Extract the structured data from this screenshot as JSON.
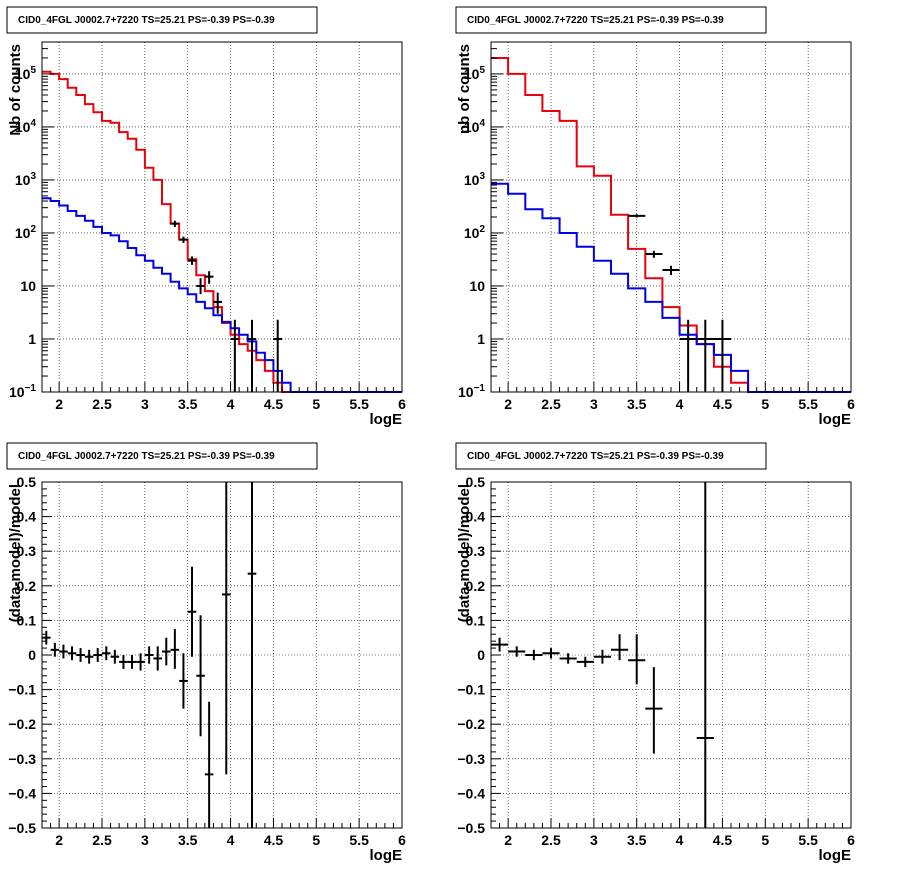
{
  "chart_data": [
    {
      "type": "line",
      "title": "CID0_4FGL J0002.7+7220 TS=25.21 PS=-0.39 PS=-0.39",
      "xlabel": "logE",
      "ylabel": "Nb of counts",
      "xlim": [
        1.8,
        6.0
      ],
      "ylim": [
        0.1,
        400000
      ],
      "yscale": "log",
      "grid": true,
      "x_ticks": [
        2,
        2.5,
        3,
        3.5,
        4,
        4.5,
        5,
        5.5,
        6
      ],
      "x_tick_labels": [
        "2",
        "2.5",
        "3",
        "3.5",
        "4",
        "4.5",
        "5",
        "5.5",
        "6"
      ],
      "y_ticks": [
        0.1,
        1,
        10,
        100,
        1000,
        10000,
        100000
      ],
      "y_tick_labels": [
        "10^-1",
        "1",
        "10",
        "10^2",
        "10^3",
        "10^4",
        "10^5"
      ],
      "series": [
        {
          "name": "",
          "style": "step",
          "color": "#e8000b",
          "bin_edges": [
            1.8,
            1.9,
            2.0,
            2.1,
            2.2,
            2.3,
            2.4,
            2.5,
            2.6,
            2.7,
            2.8,
            2.9,
            3.0,
            3.1,
            3.2,
            3.3,
            3.4,
            3.5,
            3.6,
            3.7,
            3.8,
            3.9,
            4.0,
            4.1,
            4.2,
            4.3,
            4.4,
            4.5,
            4.6,
            4.7,
            4.8,
            4.9,
            5.0,
            5.1,
            5.2,
            5.3,
            5.4,
            5.5,
            5.6,
            5.7,
            5.8,
            5.9,
            6.0
          ],
          "values": [
            110000,
            100000,
            80000,
            55000,
            40000,
            27000,
            19000,
            13000,
            12000,
            8000,
            6000,
            3700,
            1700,
            1000,
            350,
            150,
            75,
            32,
            16,
            8,
            4,
            2,
            1.2,
            0.8,
            0.6,
            0.4,
            0.25,
            0.15,
            0.1,
            0.1,
            0.1,
            0.1,
            0.1,
            0.1,
            0.1,
            0.1,
            0.1,
            0.1,
            0.1,
            0.1,
            0.1,
            0.1
          ]
        },
        {
          "name": "",
          "style": "step",
          "color": "#0000e6",
          "bin_edges": [
            1.8,
            1.9,
            2.0,
            2.1,
            2.2,
            2.3,
            2.4,
            2.5,
            2.6,
            2.7,
            2.8,
            2.9,
            3.0,
            3.1,
            3.2,
            3.3,
            3.4,
            3.5,
            3.6,
            3.7,
            3.8,
            3.9,
            4.0,
            4.1,
            4.2,
            4.3,
            4.4,
            4.5,
            4.6,
            4.7,
            4.8,
            4.9,
            5.0,
            5.1,
            5.2,
            5.3,
            5.4,
            5.5,
            5.6,
            5.7,
            5.8,
            5.9,
            6.0
          ],
          "values": [
            450,
            400,
            330,
            260,
            210,
            170,
            130,
            100,
            90,
            70,
            52,
            38,
            30,
            22,
            17,
            12,
            9,
            7,
            5,
            3.8,
            2.8,
            2.1,
            1.6,
            1.2,
            0.9,
            0.55,
            0.4,
            0.25,
            0.15,
            0.1,
            0.1,
            0.1,
            0.1,
            0.1,
            0.1,
            0.1,
            0.1,
            0.1,
            0.1,
            0.1,
            0.1,
            0.1
          ]
        },
        {
          "name": "",
          "style": "errorbar",
          "color": "#000000",
          "points": [
            {
              "x": 3.35,
              "y": 150,
              "xerr": 0.05,
              "ylo": 130,
              "yhi": 170
            },
            {
              "x": 3.45,
              "y": 75,
              "xerr": 0.05,
              "ylo": 65,
              "yhi": 85
            },
            {
              "x": 3.55,
              "y": 30,
              "xerr": 0.05,
              "ylo": 25,
              "yhi": 36
            },
            {
              "x": 3.65,
              "y": 10,
              "xerr": 0.05,
              "ylo": 7,
              "yhi": 14
            },
            {
              "x": 3.75,
              "y": 15,
              "xerr": 0.05,
              "ylo": 11,
              "yhi": 19
            },
            {
              "x": 3.85,
              "y": 5,
              "xerr": 0.05,
              "ylo": 3,
              "yhi": 7.5
            },
            {
              "x": 4.05,
              "y": 1,
              "xerr": 0.05,
              "ylo": 0.1,
              "yhi": 2.3
            },
            {
              "x": 4.25,
              "y": 1,
              "xerr": 0.05,
              "ylo": 0.1,
              "yhi": 2.3
            },
            {
              "x": 4.55,
              "y": 1,
              "xerr": 0.05,
              "ylo": 0.1,
              "yhi": 2.3
            }
          ]
        }
      ]
    },
    {
      "type": "line",
      "title": "CID0_4FGL J0002.7+7220 TS=25.21 PS=-0.39 PS=-0.39",
      "xlabel": "logE",
      "ylabel": "nb of counts",
      "xlim": [
        1.8,
        6.0
      ],
      "ylim": [
        0.1,
        400000
      ],
      "yscale": "log",
      "grid": true,
      "x_ticks": [
        2,
        2.5,
        3,
        3.5,
        4,
        4.5,
        5,
        5.5,
        6
      ],
      "x_tick_labels": [
        "2",
        "2.5",
        "3",
        "3.5",
        "4",
        "4.5",
        "5",
        "5.5",
        "6"
      ],
      "y_ticks": [
        0.1,
        1,
        10,
        100,
        1000,
        10000,
        100000
      ],
      "y_tick_labels": [
        "10^-1",
        "1",
        "10",
        "10^2",
        "10^3",
        "10^4",
        "10^5"
      ],
      "series": [
        {
          "name": "",
          "style": "step",
          "color": "#e8000b",
          "bin_edges": [
            1.8,
            2.0,
            2.2,
            2.4,
            2.6,
            2.8,
            3.0,
            3.2,
            3.4,
            3.6,
            3.8,
            4.0,
            4.2,
            4.4,
            4.6,
            4.8,
            5.0,
            5.2,
            5.4,
            5.6,
            5.8,
            6.0
          ],
          "values": [
            200000,
            100000,
            40000,
            20000,
            13000,
            1800,
            1200,
            220,
            50,
            14,
            4,
            1.8,
            0.8,
            0.3,
            0.15,
            0.1,
            0.1,
            0.1,
            0.1,
            0.1,
            0.1
          ]
        },
        {
          "name": "",
          "style": "step",
          "color": "#0000e6",
          "bin_edges": [
            1.8,
            2.0,
            2.2,
            2.4,
            2.6,
            2.8,
            3.0,
            3.2,
            3.4,
            3.6,
            3.8,
            4.0,
            4.2,
            4.4,
            4.6,
            4.8,
            5.0,
            5.2,
            5.4,
            5.6,
            5.8,
            6.0
          ],
          "values": [
            850,
            550,
            280,
            190,
            100,
            55,
            30,
            17,
            9,
            5,
            2.5,
            1.2,
            0.8,
            0.5,
            0.25,
            0.1,
            0.1,
            0.1,
            0.1,
            0.1,
            0.1
          ]
        },
        {
          "name": "",
          "style": "errorbar",
          "color": "#000000",
          "points": [
            {
              "x": 3.5,
              "y": 210,
              "xerr": 0.1,
              "ylo": 195,
              "yhi": 225
            },
            {
              "x": 3.7,
              "y": 40,
              "xerr": 0.1,
              "ylo": 34,
              "yhi": 46
            },
            {
              "x": 3.9,
              "y": 20,
              "xerr": 0.1,
              "ylo": 16,
              "yhi": 24
            },
            {
              "x": 4.1,
              "y": 1,
              "xerr": 0.1,
              "ylo": 0.1,
              "yhi": 2.3
            },
            {
              "x": 4.3,
              "y": 1,
              "xerr": 0.1,
              "ylo": 0.1,
              "yhi": 2.3
            },
            {
              "x": 4.5,
              "y": 1,
              "xerr": 0.1,
              "ylo": 0.1,
              "yhi": 2.3
            }
          ]
        }
      ]
    },
    {
      "type": "scatter",
      "title": "CID0_4FGL J0002.7+7220 TS=25.21 PS=-0.39 PS=-0.39",
      "xlabel": "logE",
      "ylabel": "(data-model)/model",
      "xlim": [
        1.8,
        6.0
      ],
      "ylim": [
        -0.5,
        0.5
      ],
      "grid": true,
      "x_ticks": [
        2,
        2.5,
        3,
        3.5,
        4,
        4.5,
        5,
        5.5,
        6
      ],
      "x_tick_labels": [
        "2",
        "2.5",
        "3",
        "3.5",
        "4",
        "4.5",
        "5",
        "5.5",
        "6"
      ],
      "y_ticks": [
        -0.5,
        -0.4,
        -0.3,
        -0.2,
        -0.1,
        0,
        0.1,
        0.2,
        0.3,
        0.4,
        0.5
      ],
      "y_tick_labels": [
        "−0.5",
        "−0.4",
        "−0.3",
        "−0.2",
        "−0.1",
        "0",
        "0.1",
        "0.2",
        "0.3",
        "0.4",
        "0.5"
      ],
      "series": [
        {
          "name": "",
          "style": "errorbar",
          "color": "#000000",
          "points": [
            {
              "x": 1.85,
              "y": 0.05,
              "xerr": 0.05,
              "ylo": 0.03,
              "yhi": 0.07
            },
            {
              "x": 1.95,
              "y": 0.015,
              "xerr": 0.05,
              "ylo": -0.005,
              "yhi": 0.035
            },
            {
              "x": 2.05,
              "y": 0.01,
              "xerr": 0.05,
              "ylo": -0.01,
              "yhi": 0.03
            },
            {
              "x": 2.15,
              "y": 0.005,
              "xerr": 0.05,
              "ylo": -0.015,
              "yhi": 0.025
            },
            {
              "x": 2.25,
              "y": 0.0,
              "xerr": 0.05,
              "ylo": -0.02,
              "yhi": 0.02
            },
            {
              "x": 2.35,
              "y": -0.005,
              "xerr": 0.05,
              "ylo": -0.025,
              "yhi": 0.015
            },
            {
              "x": 2.45,
              "y": 0.0,
              "xerr": 0.05,
              "ylo": -0.02,
              "yhi": 0.02
            },
            {
              "x": 2.55,
              "y": 0.005,
              "xerr": 0.05,
              "ylo": -0.015,
              "yhi": 0.025
            },
            {
              "x": 2.65,
              "y": -0.005,
              "xerr": 0.05,
              "ylo": -0.025,
              "yhi": 0.015
            },
            {
              "x": 2.75,
              "y": -0.02,
              "xerr": 0.05,
              "ylo": -0.04,
              "yhi": 0.0
            },
            {
              "x": 2.85,
              "y": -0.02,
              "xerr": 0.05,
              "ylo": -0.04,
              "yhi": 0.0
            },
            {
              "x": 2.95,
              "y": -0.02,
              "xerr": 0.05,
              "ylo": -0.045,
              "yhi": 0.005
            },
            {
              "x": 3.05,
              "y": 0.0,
              "xerr": 0.05,
              "ylo": -0.025,
              "yhi": 0.025
            },
            {
              "x": 3.15,
              "y": -0.01,
              "xerr": 0.05,
              "ylo": -0.045,
              "yhi": 0.025
            },
            {
              "x": 3.25,
              "y": 0.01,
              "xerr": 0.05,
              "ylo": -0.03,
              "yhi": 0.05
            },
            {
              "x": 3.35,
              "y": 0.015,
              "xerr": 0.05,
              "ylo": -0.04,
              "yhi": 0.075
            },
            {
              "x": 3.45,
              "y": -0.075,
              "xerr": 0.05,
              "ylo": -0.155,
              "yhi": 0.005
            },
            {
              "x": 3.55,
              "y": 0.125,
              "xerr": 0.05,
              "ylo": -0.005,
              "yhi": 0.255
            },
            {
              "x": 3.65,
              "y": -0.06,
              "xerr": 0.05,
              "ylo": -0.235,
              "yhi": 0.115
            },
            {
              "x": 3.75,
              "y": -0.345,
              "xerr": 0.05,
              "ylo": -0.5,
              "yhi": -0.135
            },
            {
              "x": 3.95,
              "y": 0.175,
              "xerr": 0.05,
              "ylo": -0.345,
              "yhi": 0.5
            },
            {
              "x": 4.25,
              "y": 0.235,
              "xerr": 0.05,
              "ylo": -0.5,
              "yhi": 0.5
            }
          ]
        }
      ]
    },
    {
      "type": "scatter",
      "title": "CID0_4FGL J0002.7+7220 TS=25.21 PS=-0.39 PS=-0.39",
      "xlabel": "logE",
      "ylabel": "(data-model)/model",
      "xlim": [
        1.8,
        6.0
      ],
      "ylim": [
        -0.5,
        0.5
      ],
      "grid": true,
      "x_ticks": [
        2,
        2.5,
        3,
        3.5,
        4,
        4.5,
        5,
        5.5,
        6
      ],
      "x_tick_labels": [
        "2",
        "2.5",
        "3",
        "3.5",
        "4",
        "4.5",
        "5",
        "5.5",
        "6"
      ],
      "y_ticks": [
        -0.5,
        -0.4,
        -0.3,
        -0.2,
        -0.1,
        0,
        0.1,
        0.2,
        0.3,
        0.4,
        0.5
      ],
      "y_tick_labels": [
        "−0.5",
        "−0.4",
        "−0.3",
        "−0.2",
        "−0.1",
        "0",
        "0.1",
        "0.2",
        "0.3",
        "0.4",
        "0.5"
      ],
      "series": [
        {
          "name": "",
          "style": "errorbar",
          "color": "#000000",
          "points": [
            {
              "x": 1.9,
              "y": 0.03,
              "xerr": 0.1,
              "ylo": 0.01,
              "yhi": 0.05
            },
            {
              "x": 2.1,
              "y": 0.01,
              "xerr": 0.1,
              "ylo": -0.005,
              "yhi": 0.025
            },
            {
              "x": 2.3,
              "y": 0.0,
              "xerr": 0.1,
              "ylo": -0.015,
              "yhi": 0.015
            },
            {
              "x": 2.5,
              "y": 0.005,
              "xerr": 0.1,
              "ylo": -0.01,
              "yhi": 0.02
            },
            {
              "x": 2.7,
              "y": -0.01,
              "xerr": 0.1,
              "ylo": -0.025,
              "yhi": 0.005
            },
            {
              "x": 2.9,
              "y": -0.02,
              "xerr": 0.1,
              "ylo": -0.035,
              "yhi": -0.005
            },
            {
              "x": 3.1,
              "y": -0.005,
              "xerr": 0.1,
              "ylo": -0.025,
              "yhi": 0.015
            },
            {
              "x": 3.3,
              "y": 0.015,
              "xerr": 0.1,
              "ylo": -0.015,
              "yhi": 0.06
            },
            {
              "x": 3.5,
              "y": -0.015,
              "xerr": 0.1,
              "ylo": -0.085,
              "yhi": 0.06
            },
            {
              "x": 3.7,
              "y": -0.155,
              "xerr": 0.1,
              "ylo": -0.285,
              "yhi": -0.035
            },
            {
              "x": 4.3,
              "y": -0.24,
              "xerr": 0.1,
              "ylo": -0.5,
              "yhi": 0.5
            }
          ]
        }
      ]
    }
  ]
}
